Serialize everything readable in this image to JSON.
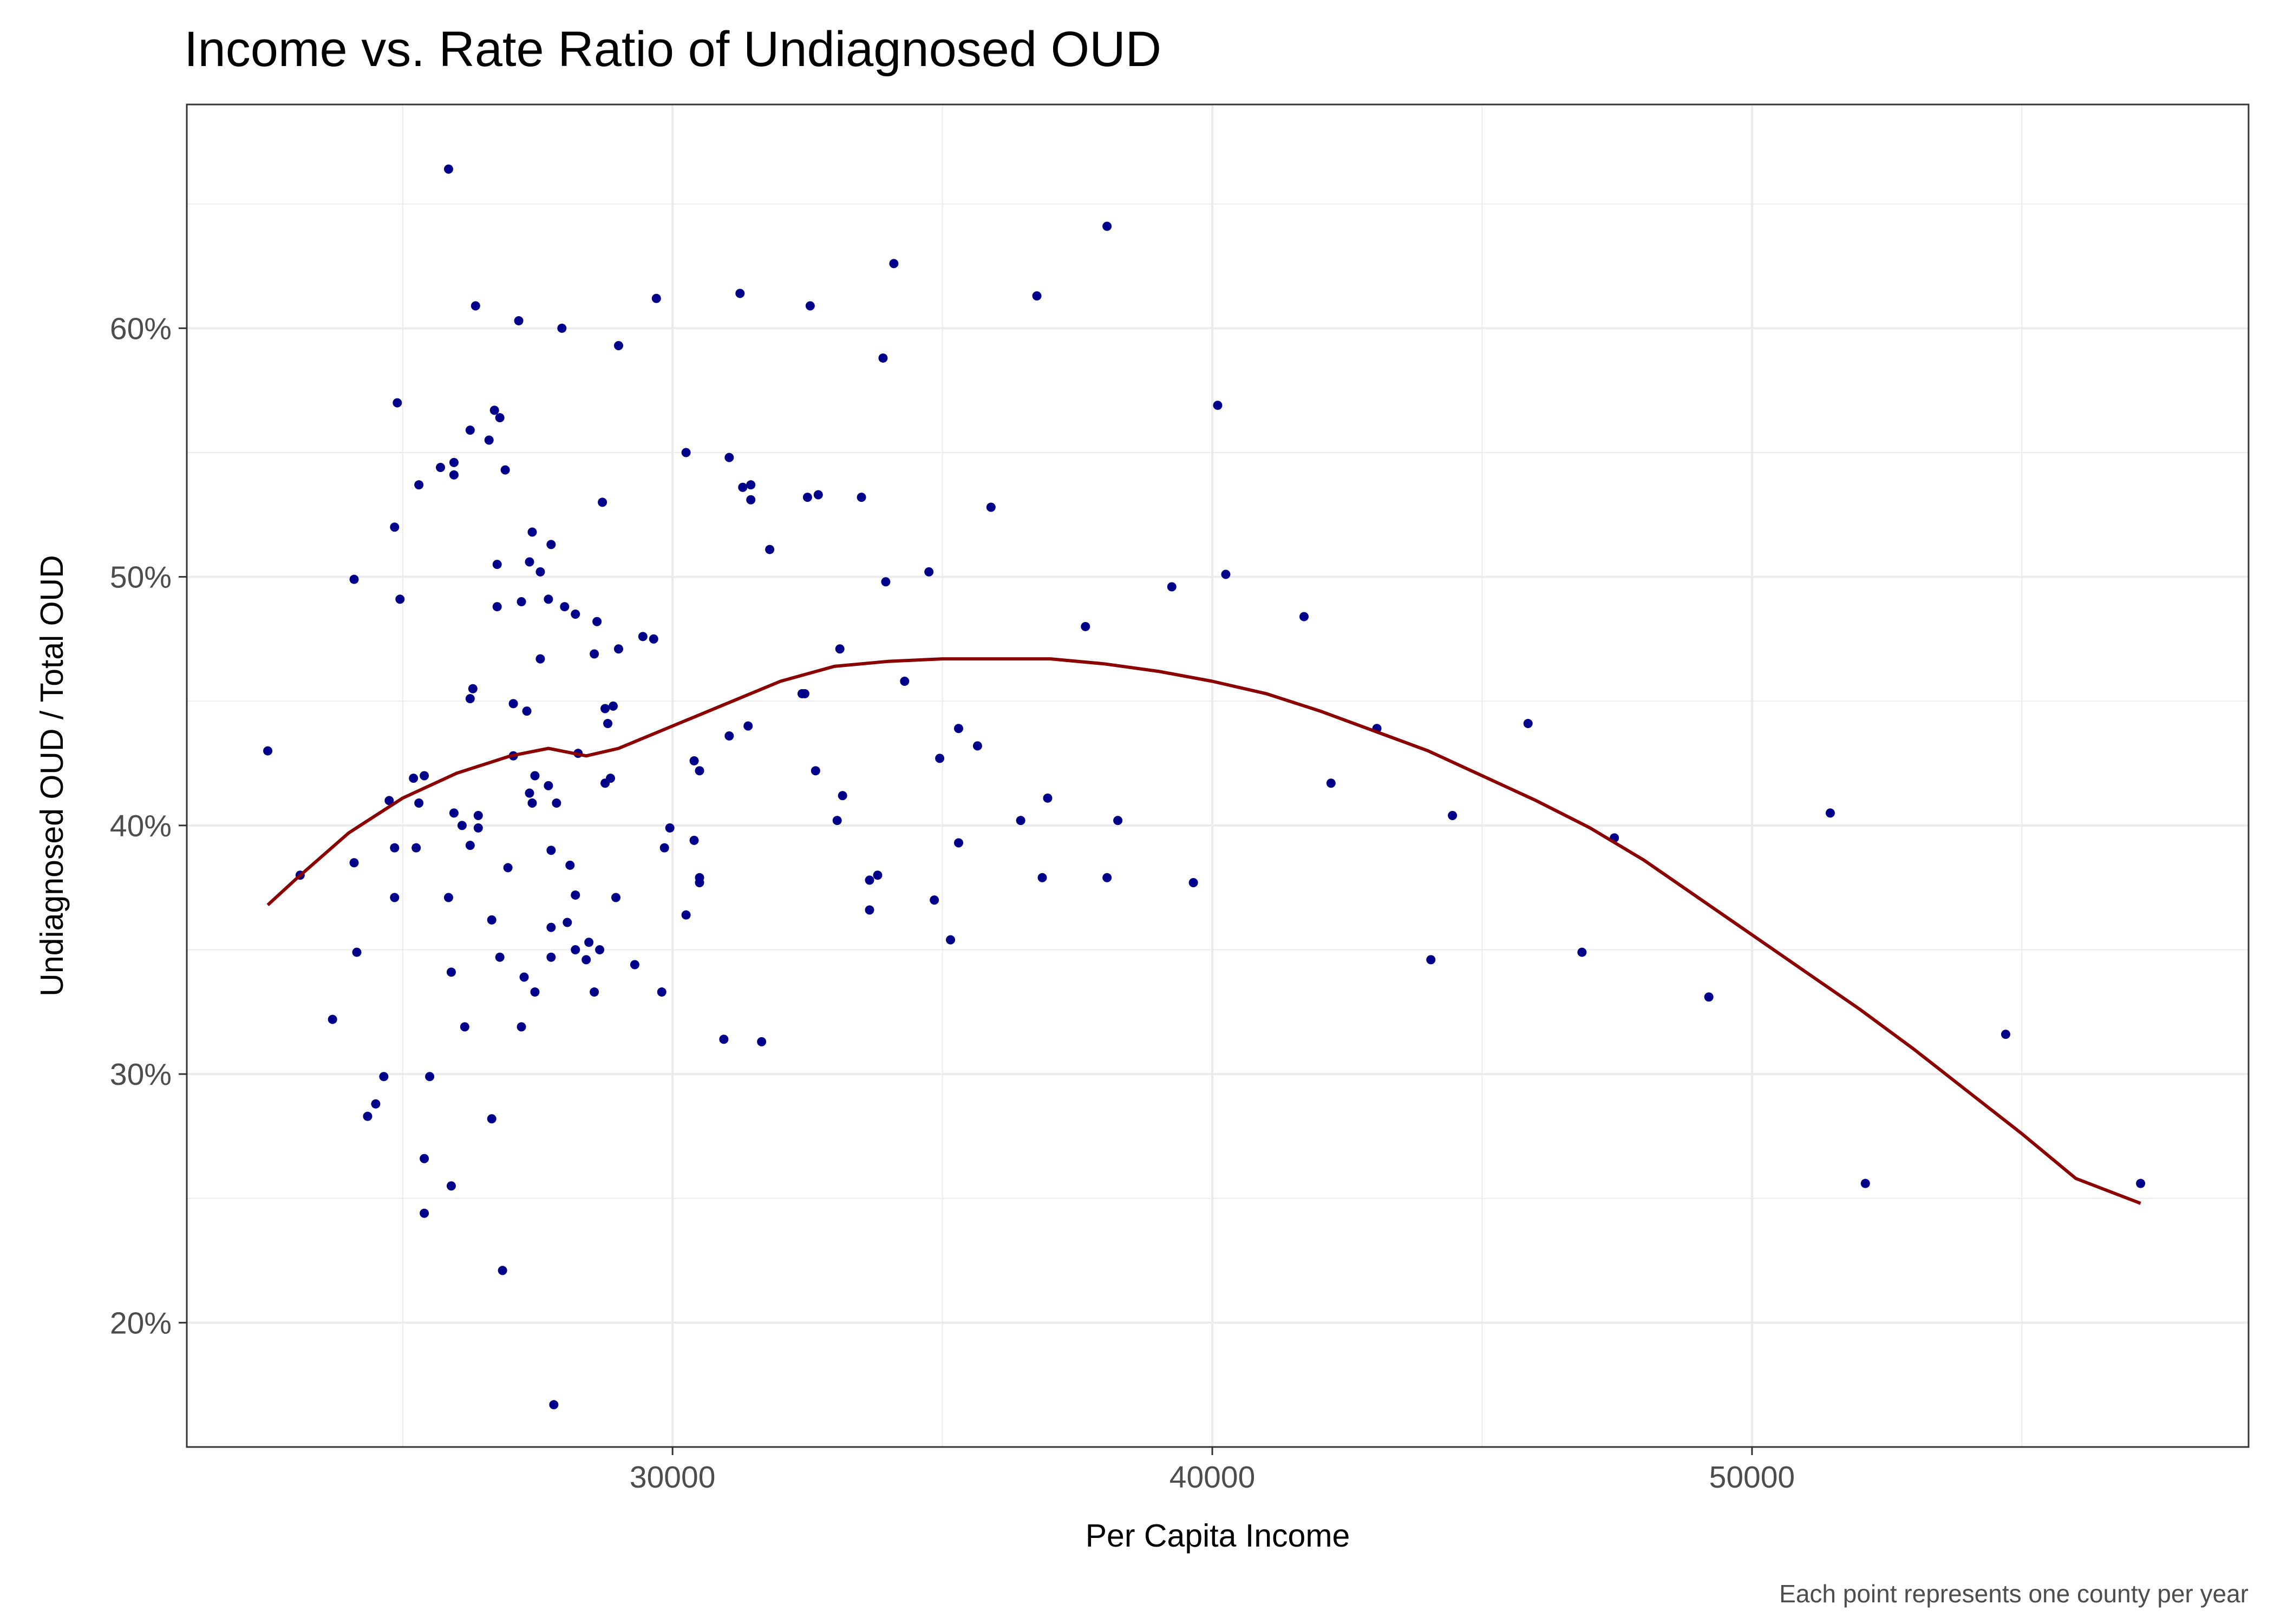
{
  "chart_data": {
    "type": "scatter",
    "title": "Income vs. Rate Ratio of Undiagnosed OUD",
    "xlabel": "Per Capita Income",
    "ylabel": "Undiagnosed OUD / Total OUD",
    "caption": "Each point represents one county per year",
    "xlim": [
      21000,
      59200
    ],
    "ylim": [
      0.15,
      0.69
    ],
    "x_ticks": [
      30000,
      40000,
      50000
    ],
    "x_tick_labels": [
      "30000",
      "40000",
      "50000"
    ],
    "y_ticks": [
      0.2,
      0.3,
      0.4,
      0.5,
      0.6
    ],
    "y_tick_labels": [
      "20%",
      "30%",
      "40%",
      "50%",
      "60%"
    ],
    "y_minor_ticks": [
      0.15,
      0.25,
      0.35,
      0.45,
      0.55,
      0.65
    ],
    "x_minor_ticks": [
      25000,
      35000,
      45000,
      55000
    ],
    "grid": true,
    "colors": {
      "points": "#00008b",
      "trend": "#8b0000",
      "grid": "#ebebeb",
      "panel_border": "#333333"
    },
    "series": [
      {
        "kind": "points",
        "points": [
          [
            22500,
            0.43
          ],
          [
            23100,
            0.38
          ],
          [
            23700,
            0.322
          ],
          [
            24100,
            0.499
          ],
          [
            24100,
            0.385
          ],
          [
            24150,
            0.349
          ],
          [
            24350,
            0.283
          ],
          [
            24500,
            0.288
          ],
          [
            24650,
            0.299
          ],
          [
            24750,
            0.41
          ],
          [
            24850,
            0.391
          ],
          [
            24850,
            0.371
          ],
          [
            24900,
            0.57
          ],
          [
            24850,
            0.52
          ],
          [
            24950,
            0.491
          ],
          [
            25200,
            0.419
          ],
          [
            25250,
            0.391
          ],
          [
            25300,
            0.537
          ],
          [
            25300,
            0.409
          ],
          [
            25400,
            0.42
          ],
          [
            25400,
            0.266
          ],
          [
            25400,
            0.244
          ],
          [
            25500,
            0.299
          ],
          [
            25700,
            0.544
          ],
          [
            25850,
            0.664
          ],
          [
            25850,
            0.371
          ],
          [
            25900,
            0.341
          ],
          [
            25900,
            0.255
          ],
          [
            25950,
            0.546
          ],
          [
            25950,
            0.541
          ],
          [
            25950,
            0.405
          ],
          [
            26100,
            0.4
          ],
          [
            26150,
            0.319
          ],
          [
            26250,
            0.559
          ],
          [
            26250,
            0.451
          ],
          [
            26300,
            0.455
          ],
          [
            26250,
            0.392
          ],
          [
            26350,
            0.609
          ],
          [
            26400,
            0.404
          ],
          [
            26400,
            0.399
          ],
          [
            26600,
            0.555
          ],
          [
            26650,
            0.282
          ],
          [
            26650,
            0.362
          ],
          [
            26700,
            0.567
          ],
          [
            26750,
            0.488
          ],
          [
            26800,
            0.564
          ],
          [
            26750,
            0.505
          ],
          [
            26800,
            0.347
          ],
          [
            26850,
            0.221
          ],
          [
            26900,
            0.543
          ],
          [
            26950,
            0.383
          ],
          [
            27050,
            0.428
          ],
          [
            27050,
            0.449
          ],
          [
            27150,
            0.603
          ],
          [
            27200,
            0.319
          ],
          [
            27200,
            0.49
          ],
          [
            27250,
            0.339
          ],
          [
            27300,
            0.446
          ],
          [
            27350,
            0.506
          ],
          [
            27350,
            0.413
          ],
          [
            27400,
            0.518
          ],
          [
            27400,
            0.409
          ],
          [
            27450,
            0.42
          ],
          [
            27450,
            0.333
          ],
          [
            27550,
            0.502
          ],
          [
            27550,
            0.467
          ],
          [
            27700,
            0.491
          ],
          [
            27700,
            0.416
          ],
          [
            27750,
            0.513
          ],
          [
            27750,
            0.39
          ],
          [
            27750,
            0.359
          ],
          [
            27750,
            0.347
          ],
          [
            27800,
            0.167
          ],
          [
            27850,
            0.409
          ],
          [
            27950,
            0.6
          ],
          [
            28000,
            0.488
          ],
          [
            28050,
            0.361
          ],
          [
            28100,
            0.384
          ],
          [
            28200,
            0.485
          ],
          [
            28200,
            0.372
          ],
          [
            28200,
            0.35
          ],
          [
            28250,
            0.429
          ],
          [
            28400,
            0.346
          ],
          [
            28450,
            0.353
          ],
          [
            28550,
            0.333
          ],
          [
            28550,
            0.469
          ],
          [
            28600,
            0.482
          ],
          [
            28650,
            0.35
          ],
          [
            28700,
            0.53
          ],
          [
            28750,
            0.447
          ],
          [
            28750,
            0.417
          ],
          [
            28800,
            0.441
          ],
          [
            28850,
            0.419
          ],
          [
            28900,
            0.448
          ],
          [
            28950,
            0.371
          ],
          [
            29000,
            0.471
          ],
          [
            29000,
            0.593
          ],
          [
            29300,
            0.344
          ],
          [
            29450,
            0.476
          ],
          [
            29650,
            0.475
          ],
          [
            29700,
            0.612
          ],
          [
            29800,
            0.333
          ],
          [
            29850,
            0.391
          ],
          [
            29950,
            0.399
          ],
          [
            30250,
            0.364
          ],
          [
            30250,
            0.55
          ],
          [
            30400,
            0.426
          ],
          [
            30400,
            0.394
          ],
          [
            30500,
            0.379
          ],
          [
            30500,
            0.422
          ],
          [
            30500,
            0.377
          ],
          [
            30950,
            0.314
          ],
          [
            31050,
            0.436
          ],
          [
            31050,
            0.548
          ],
          [
            31250,
            0.614
          ],
          [
            31300,
            0.536
          ],
          [
            31400,
            0.44
          ],
          [
            31450,
            0.537
          ],
          [
            31450,
            0.531
          ],
          [
            31650,
            0.313
          ],
          [
            31800,
            0.511
          ],
          [
            32400,
            0.453
          ],
          [
            32450,
            0.453
          ],
          [
            32500,
            0.532
          ],
          [
            32550,
            0.609
          ],
          [
            32650,
            0.422
          ],
          [
            32700,
            0.533
          ],
          [
            33050,
            0.402
          ],
          [
            33100,
            0.471
          ],
          [
            33150,
            0.412
          ],
          [
            33500,
            0.532
          ],
          [
            33650,
            0.366
          ],
          [
            33650,
            0.378
          ],
          [
            33800,
            0.38
          ],
          [
            33900,
            0.588
          ],
          [
            33950,
            0.498
          ],
          [
            34100,
            0.626
          ],
          [
            34300,
            0.458
          ],
          [
            34750,
            0.502
          ],
          [
            34850,
            0.37
          ],
          [
            34950,
            0.427
          ],
          [
            35150,
            0.354
          ],
          [
            35300,
            0.439
          ],
          [
            35300,
            0.393
          ],
          [
            35650,
            0.432
          ],
          [
            35900,
            0.528
          ],
          [
            36450,
            0.402
          ],
          [
            36750,
            0.613
          ],
          [
            36850,
            0.379
          ],
          [
            36950,
            0.411
          ],
          [
            37650,
            0.48
          ],
          [
            38050,
            0.641
          ],
          [
            38050,
            0.379
          ],
          [
            38250,
            0.402
          ],
          [
            39250,
            0.496
          ],
          [
            39650,
            0.377
          ],
          [
            40100,
            0.569
          ],
          [
            40250,
            0.501
          ],
          [
            41700,
            0.484
          ],
          [
            42200,
            0.417
          ],
          [
            43050,
            0.439
          ],
          [
            44050,
            0.346
          ],
          [
            44450,
            0.404
          ],
          [
            45850,
            0.441
          ],
          [
            46850,
            0.349
          ],
          [
            47450,
            0.395
          ],
          [
            49200,
            0.331
          ],
          [
            51450,
            0.405
          ],
          [
            52100,
            0.256
          ],
          [
            54700,
            0.316
          ],
          [
            57200,
            0.256
          ]
        ]
      },
      {
        "kind": "trend",
        "points": [
          [
            22500,
            0.368
          ],
          [
            23000,
            0.378
          ],
          [
            24000,
            0.397
          ],
          [
            25000,
            0.411
          ],
          [
            26000,
            0.421
          ],
          [
            27000,
            0.428
          ],
          [
            27700,
            0.431
          ],
          [
            28400,
            0.428
          ],
          [
            29000,
            0.431
          ],
          [
            30000,
            0.44
          ],
          [
            31000,
            0.449
          ],
          [
            32000,
            0.458
          ],
          [
            33000,
            0.464
          ],
          [
            34000,
            0.466
          ],
          [
            35000,
            0.467
          ],
          [
            36000,
            0.467
          ],
          [
            37000,
            0.467
          ],
          [
            38000,
            0.465
          ],
          [
            39000,
            0.462
          ],
          [
            40000,
            0.458
          ],
          [
            41000,
            0.453
          ],
          [
            42000,
            0.446
          ],
          [
            43000,
            0.438
          ],
          [
            44000,
            0.43
          ],
          [
            45000,
            0.42
          ],
          [
            46000,
            0.41
          ],
          [
            47000,
            0.399
          ],
          [
            48000,
            0.386
          ],
          [
            49000,
            0.371
          ],
          [
            50000,
            0.356
          ],
          [
            51000,
            0.341
          ],
          [
            52000,
            0.326
          ],
          [
            53000,
            0.31
          ],
          [
            54000,
            0.293
          ],
          [
            55000,
            0.276
          ],
          [
            56000,
            0.258
          ],
          [
            57200,
            0.248
          ]
        ]
      }
    ]
  }
}
